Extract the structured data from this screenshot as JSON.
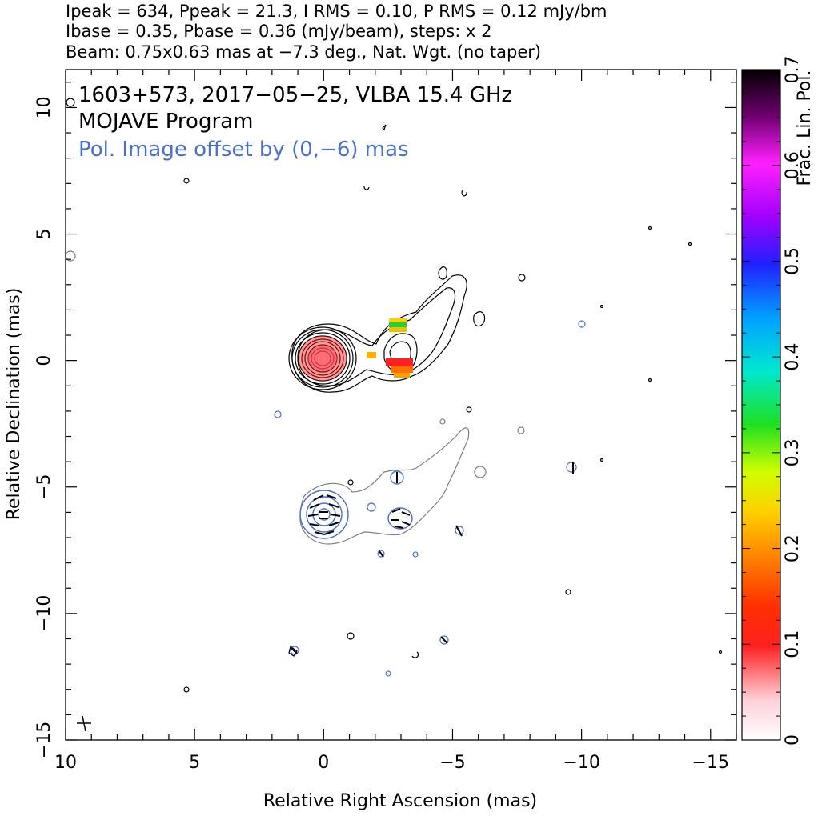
{
  "header": {
    "line1": "Ipeak = 634, Ppeak = 21.3, I RMS = 0.10, P RMS = 0.12 mJy/bm",
    "line2": "Ibase = 0.35, Pbase = 0.36 (mJy/beam), steps: x 2",
    "line3": "Beam: 0.75x0.63 mas at −7.3 deg., Nat. Wgt. (no taper)"
  },
  "annotations": {
    "source": "1603+573, 2017−05−25, VLBA 15.4 GHz",
    "program": "MOJAVE Program",
    "offset": "Pol. Image offset by (0,−6) mas"
  },
  "colors": {
    "stokes_i": "#000000",
    "pol_contour": "#808080",
    "pol_annotation": "#4a6fd0",
    "evpa": "#000000"
  },
  "chart_data": {
    "type": "contour",
    "xlabel": "Relative Right Ascension (mas)",
    "ylabel": "Relative Declination (mas)",
    "xlim": [
      10,
      -16
    ],
    "ylim": [
      -15,
      11.5
    ],
    "xticks": [
      10,
      5,
      0,
      -5,
      -10,
      -15
    ],
    "xtick_labels": [
      "10",
      "5",
      "0",
      "−5",
      "−10",
      "−15"
    ],
    "yticks": [
      -15,
      -10,
      -5,
      0,
      5,
      10
    ],
    "ytick_labels": [
      "−15",
      "−10",
      "−5",
      "0",
      "5",
      "10"
    ],
    "colorbar": {
      "label": "Frac. Lin. Pol.",
      "range": [
        0,
        0.7
      ],
      "ticks": [
        0,
        0.1,
        0.2,
        0.3,
        0.4,
        0.5,
        0.6,
        0.7
      ],
      "tick_labels": [
        "0",
        "0.1",
        "0.2",
        "0.3",
        "0.4",
        "0.5",
        "0.6",
        "0.7"
      ]
    },
    "core": {
      "x": 0,
      "y": 0
    },
    "pol_offset": [
      0,
      -6
    ],
    "beam": {
      "major": 0.75,
      "minor": 0.63,
      "pa": -7.3
    }
  }
}
